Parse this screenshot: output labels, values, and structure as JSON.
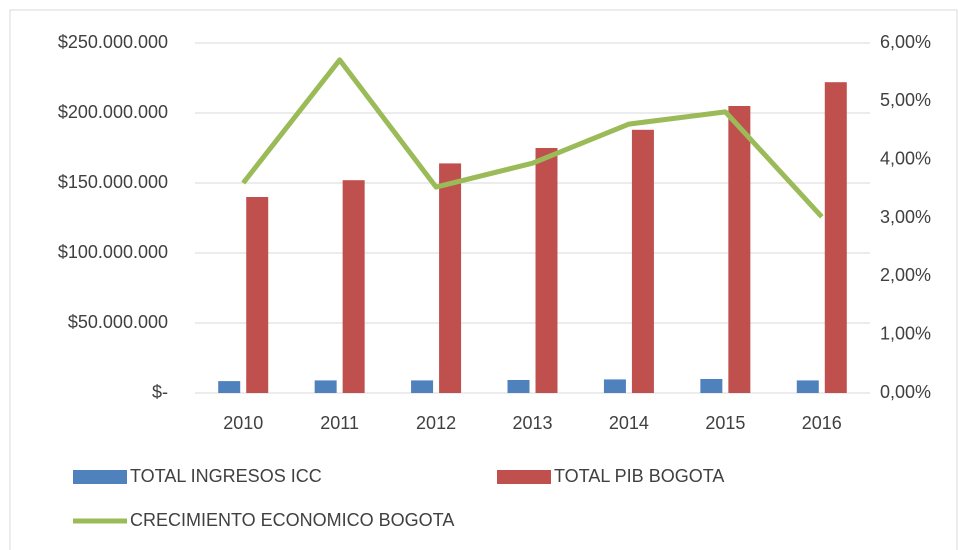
{
  "chart_data": {
    "type": "bar",
    "categories": [
      "2010",
      "2011",
      "2012",
      "2013",
      "2014",
      "2015",
      "2016"
    ],
    "series": [
      {
        "name": "TOTAL INGRESOS ICC",
        "color": "#4f81bd",
        "type": "bar",
        "values": [
          8500000,
          9000000,
          9000000,
          9300000,
          9700000,
          10000000,
          9000000
        ]
      },
      {
        "name": "TOTAL PIB BOGOTA",
        "color": "#c0504d",
        "type": "bar",
        "values": [
          140000000,
          152000000,
          164000000,
          175000000,
          188000000,
          205000000,
          222000000
        ]
      },
      {
        "name": "CRECIMIENTO ECONOMICO BOGOTA",
        "color": "#9bbb59",
        "type": "line",
        "axis": "y2",
        "values": [
          3.6,
          5.71,
          3.53,
          3.94,
          4.61,
          4.82,
          3.02
        ]
      }
    ],
    "ylim": [
      0,
      250000000
    ],
    "yticks": [
      {
        "value": 0,
        "label": "$-"
      },
      {
        "value": 50000000,
        "label": "$50.000.000"
      },
      {
        "value": 100000000,
        "label": "$100.000.000"
      },
      {
        "value": 150000000,
        "label": "$150.000.000"
      },
      {
        "value": 200000000,
        "label": "$200.000.000"
      },
      {
        "value": 250000000,
        "label": "$250.000.000"
      }
    ],
    "y2lim": [
      0,
      6
    ],
    "y2ticks": [
      {
        "value": 0,
        "label": "0,00%"
      },
      {
        "value": 1,
        "label": "1,00%"
      },
      {
        "value": 2,
        "label": "2,00%"
      },
      {
        "value": 3,
        "label": "3,00%"
      },
      {
        "value": 4,
        "label": "4,00%"
      },
      {
        "value": 5,
        "label": "5,00%"
      },
      {
        "value": 6,
        "label": "6,00%"
      }
    ],
    "grid": true,
    "legend": "bottom"
  }
}
